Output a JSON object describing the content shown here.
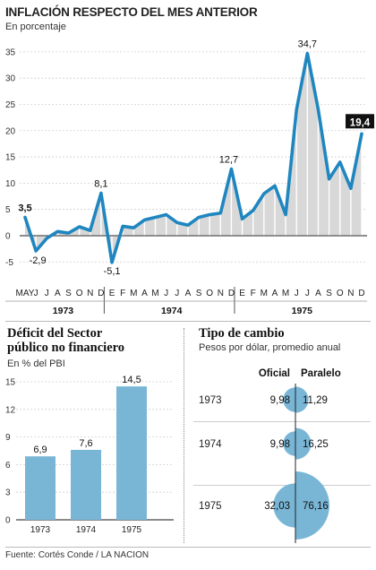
{
  "line_chart": {
    "title": "INFLACIÓN RESPECTO DEL MES ANTERIOR",
    "subtitle": "En porcentaje"
  },
  "deficit_chart": {
    "title_line1": "Déficit del Sector",
    "title_line2": "público no financiero",
    "subtitle": "En % del PBI"
  },
  "exchange": {
    "title": "Tipo de cambio",
    "subtitle": "Pesos por dólar, promedio anual",
    "col_oficial": "Oficial",
    "col_paralelo": "Paralelo",
    "rows": [
      {
        "year": "1973",
        "oficial": "9,98",
        "paralelo": "11,29",
        "oficial_value": 9.98,
        "paralelo_value": 11.29
      },
      {
        "year": "1974",
        "oficial": "9,98",
        "paralelo": "16,25",
        "oficial_value": 9.98,
        "paralelo_value": 16.25
      },
      {
        "year": "1975",
        "oficial": "32,03",
        "paralelo": "76,16",
        "oficial_value": 32.03,
        "paralelo_value": 76.16
      }
    ]
  },
  "source": "Fuente: Cortés Conde / LA NACION",
  "colors": {
    "line": "#1f86bf",
    "area": "#d8d8d8",
    "bar": "#79b6d6",
    "circle": "#79b6d6",
    "label_box": "#111111"
  },
  "chart_data": [
    {
      "type": "line",
      "title": "INFLACIÓN RESPECTO DEL MES ANTERIOR",
      "subtitle": "En porcentaje",
      "x_tick_labels": [
        "MAY",
        "J",
        "J",
        "A",
        "S",
        "O",
        "N",
        "D",
        "E",
        "F",
        "M",
        "A",
        "M",
        "J",
        "J",
        "A",
        "S",
        "O",
        "N",
        "D",
        "E",
        "F",
        "M",
        "A",
        "M",
        "J",
        "J",
        "A",
        "S",
        "O",
        "N",
        "D"
      ],
      "year_labels": [
        "1973",
        "1974",
        "1975"
      ],
      "yticks": [
        -5,
        0,
        5,
        10,
        15,
        20,
        25,
        30,
        35
      ],
      "ylim": [
        -7,
        36
      ],
      "grid": true,
      "series": [
        {
          "values": [
            3.5,
            -2.9,
            -0.5,
            0.8,
            0.5,
            1.7,
            1.0,
            8.1,
            -5.1,
            1.8,
            1.5,
            3.0,
            3.5,
            4.0,
            2.5,
            2.0,
            3.5,
            4.0,
            4.3,
            12.7,
            3.2,
            4.8,
            8.0,
            9.5,
            4.0,
            24.0,
            34.7,
            24.0,
            10.8,
            14.0,
            9.0,
            19.4
          ]
        }
      ],
      "annotations": [
        {
          "index": 0,
          "text": "3,5"
        },
        {
          "index": 1,
          "text": "-2,9"
        },
        {
          "index": 7,
          "text": "8,1"
        },
        {
          "index": 8,
          "text": "-5,1"
        },
        {
          "index": 19,
          "text": "12,7"
        },
        {
          "index": 26,
          "text": "34,7"
        },
        {
          "index": 31,
          "text": "19,4",
          "boxed": true
        }
      ]
    },
    {
      "type": "bar",
      "title": "Déficit del Sector público no financiero",
      "subtitle": "En % del PBI",
      "categories": [
        "1973",
        "1974",
        "1975"
      ],
      "values": [
        6.9,
        7.6,
        14.5
      ],
      "value_labels": [
        "6,9",
        "7,6",
        "14,5"
      ],
      "yticks": [
        0,
        3,
        6,
        9,
        12,
        15
      ],
      "ylim": [
        0,
        15
      ]
    }
  ]
}
